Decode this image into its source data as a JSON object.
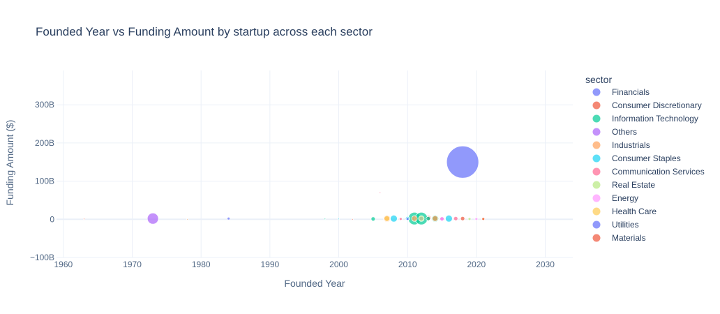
{
  "chart_data": {
    "type": "scatter",
    "title": "Founded Year vs Funding Amount by startup across each sector",
    "xlabel": "Founded Year",
    "ylabel": "Funding Amount ($)",
    "xlim": [
      1959,
      2034
    ],
    "ylim": [
      -100,
      390
    ],
    "x_ticks": [
      1960,
      1970,
      1980,
      1990,
      2000,
      2010,
      2020,
      2030
    ],
    "x_tick_labels": [
      "1960",
      "1970",
      "1980",
      "1990",
      "2000",
      "2010",
      "2020",
      "2030"
    ],
    "y_ticks": [
      -100,
      0,
      100,
      200,
      300
    ],
    "y_tick_labels": [
      "−100B",
      "0",
      "100B",
      "200B",
      "300B"
    ],
    "grid": true,
    "legend_title": "sector",
    "legend_position": "right",
    "series": [
      {
        "name": "Financials",
        "color": "#636efa",
        "points": [
          [
            2018,
            150,
            23
          ],
          [
            1984,
            2,
            2
          ],
          [
            2013,
            3,
            3
          ],
          [
            2015,
            2,
            3
          ]
        ]
      },
      {
        "name": "Consumer Discretionary",
        "color": "#ef553b",
        "points": [
          [
            1963,
            1,
            1
          ],
          [
            2013,
            3,
            4
          ],
          [
            2014,
            2,
            4
          ],
          [
            2018,
            2,
            3
          ]
        ]
      },
      {
        "name": "Information Technology",
        "color": "#00cc96",
        "points": [
          [
            2005,
            1,
            3
          ],
          [
            2011,
            2,
            9
          ],
          [
            2012,
            2,
            9
          ],
          [
            2013,
            2,
            3
          ],
          [
            2014,
            2,
            5
          ],
          [
            1998,
            1,
            1
          ]
        ]
      },
      {
        "name": "Others",
        "color": "#ab63fa",
        "points": [
          [
            1973,
            2,
            8
          ],
          [
            2012,
            2,
            3
          ]
        ]
      },
      {
        "name": "Industrials",
        "color": "#ffa15a",
        "points": [
          [
            2007,
            2,
            5
          ],
          [
            2014,
            2,
            4
          ],
          [
            2011,
            2,
            4
          ],
          [
            1978,
            0,
            1
          ]
        ]
      },
      {
        "name": "Consumer Staples",
        "color": "#19d3f3",
        "points": [
          [
            2008,
            2,
            5
          ],
          [
            2016,
            2,
            5
          ],
          [
            2010,
            2,
            3
          ],
          [
            2000,
            1,
            1
          ]
        ]
      },
      {
        "name": "Communication Services",
        "color": "#ff6692",
        "points": [
          [
            2006,
            70,
            1
          ],
          [
            2017,
            2,
            3
          ],
          [
            2015,
            2,
            3
          ],
          [
            2009,
            1,
            2
          ]
        ]
      },
      {
        "name": "Real Estate",
        "color": "#b6e880",
        "points": [
          [
            2012,
            2,
            4
          ],
          [
            2019,
            1,
            2
          ]
        ]
      },
      {
        "name": "Energy",
        "color": "#ff97ff",
        "points": [
          [
            2015,
            1,
            3
          ],
          [
            2020,
            1,
            2
          ]
        ]
      },
      {
        "name": "Health Care",
        "color": "#fecb52",
        "points": [
          [
            2007,
            2,
            4
          ],
          [
            2021,
            1,
            2
          ]
        ]
      },
      {
        "name": "Utilities",
        "color": "#636efa",
        "points": [
          [
            2010,
            1,
            2
          ]
        ]
      },
      {
        "name": "Materials",
        "color": "#ef553b",
        "points": [
          [
            2002,
            0,
            1
          ],
          [
            2021,
            1,
            2
          ]
        ]
      }
    ]
  }
}
